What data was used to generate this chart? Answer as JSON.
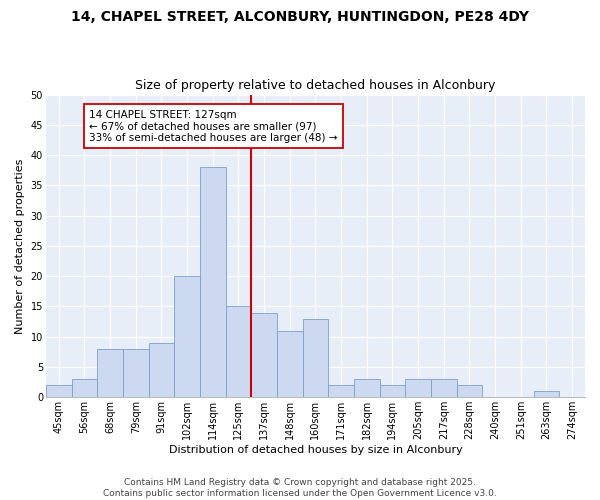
{
  "title_line1": "14, CHAPEL STREET, ALCONBURY, HUNTINGDON, PE28 4DY",
  "title_line2": "Size of property relative to detached houses in Alconbury",
  "xlabel": "Distribution of detached houses by size in Alconbury",
  "ylabel": "Number of detached properties",
  "bar_labels": [
    "45sqm",
    "56sqm",
    "68sqm",
    "79sqm",
    "91sqm",
    "102sqm",
    "114sqm",
    "125sqm",
    "137sqm",
    "148sqm",
    "160sqm",
    "171sqm",
    "182sqm",
    "194sqm",
    "205sqm",
    "217sqm",
    "228sqm",
    "240sqm",
    "251sqm",
    "263sqm",
    "274sqm"
  ],
  "bar_values": [
    2,
    3,
    8,
    8,
    9,
    20,
    38,
    15,
    14,
    11,
    13,
    2,
    3,
    2,
    3,
    3,
    2,
    0,
    0,
    1,
    0
  ],
  "bar_color": "#ccd9f0",
  "bar_edgecolor": "#7a9fd4",
  "reference_line_color": "#cc0000",
  "annotation_title": "14 CHAPEL STREET: 127sqm",
  "annotation_line1": "← 67% of detached houses are smaller (97)",
  "annotation_line2": "33% of semi-detached houses are larger (48) →",
  "annotation_box_facecolor": "#ffffff",
  "annotation_box_edgecolor": "#cc0000",
  "ylim": [
    0,
    50
  ],
  "yticks": [
    0,
    5,
    10,
    15,
    20,
    25,
    30,
    35,
    40,
    45,
    50
  ],
  "background_color": "#e8eef8",
  "footer_line1": "Contains HM Land Registry data © Crown copyright and database right 2025.",
  "footer_line2": "Contains public sector information licensed under the Open Government Licence v3.0.",
  "title_fontsize": 10,
  "subtitle_fontsize": 9,
  "axis_label_fontsize": 8,
  "tick_fontsize": 7,
  "annotation_fontsize": 7.5,
  "footer_fontsize": 6.5
}
